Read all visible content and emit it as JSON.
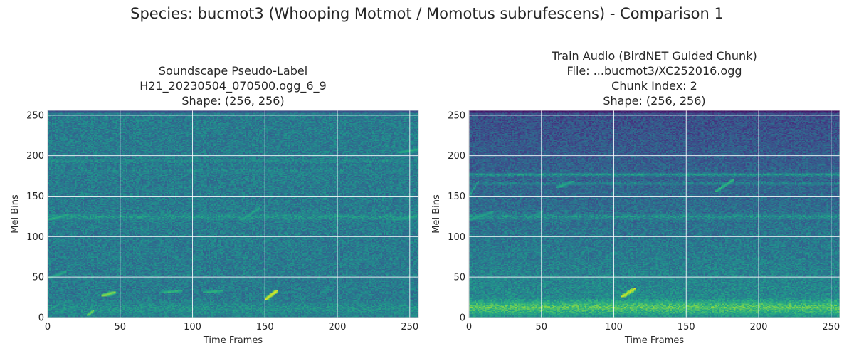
{
  "figure": {
    "title": "Species: bucmot3 (Whooping Motmot / Momotus subrufescens) - Comparison 1"
  },
  "chart_data": [
    {
      "type": "heatmap",
      "title_lines": [
        "Soundscape Pseudo-Label",
        "H21_20230504_070500.ogg_6_9",
        "Shape: (256, 256)"
      ],
      "xlabel": "Time Frames",
      "ylabel": "Mel Bins",
      "xlim": [
        0,
        256
      ],
      "ylim": [
        0,
        256
      ],
      "xticks": [
        0,
        50,
        100,
        150,
        200,
        250
      ],
      "yticks": [
        0,
        50,
        100,
        150,
        200,
        250
      ],
      "grid": true,
      "colormap": "viridis",
      "shape": [
        256,
        256
      ],
      "baseline_level": 0.42,
      "bands": [
        {
          "y": 249,
          "width": 2,
          "level": 0.38
        },
        {
          "y": 193,
          "width": 3,
          "level": 0.48
        },
        {
          "y": 180,
          "width": 3,
          "level": 0.46
        },
        {
          "y": 124,
          "width": 5,
          "level": 0.52
        },
        {
          "y": 10,
          "width": 12,
          "level": 0.5
        }
      ],
      "top_rows_level": 0.25,
      "calls": [
        {
          "x0": 37,
          "x1": 46,
          "y0": 26,
          "y1": 31,
          "level": 0.85
        },
        {
          "x0": 150,
          "x1": 158,
          "y0": 22,
          "y1": 33,
          "level": 0.98
        },
        {
          "x0": 27,
          "x1": 31,
          "y0": 2,
          "y1": 8,
          "level": 0.8
        },
        {
          "x0": 79,
          "x1": 92,
          "y0": 30,
          "y1": 33,
          "level": 0.68
        },
        {
          "x0": 107,
          "x1": 120,
          "y0": 30,
          "y1": 33,
          "level": 0.66
        },
        {
          "x0": 133,
          "x1": 146,
          "y0": 120,
          "y1": 135,
          "level": 0.62
        },
        {
          "x0": 0,
          "x1": 14,
          "y0": 120,
          "y1": 127,
          "level": 0.64
        },
        {
          "x0": 238,
          "x1": 254,
          "y0": 120,
          "y1": 124,
          "level": 0.6
        },
        {
          "x0": 242,
          "x1": 256,
          "y0": 203,
          "y1": 208,
          "level": 0.64
        },
        {
          "x0": 0,
          "x1": 12,
          "y0": 48,
          "y1": 56,
          "level": 0.62
        }
      ]
    },
    {
      "type": "heatmap",
      "title_lines": [
        "Train Audio (BirdNET Guided Chunk)",
        "File: ...bucmot3/XC252016.ogg",
        "Chunk Index: 2",
        "Shape: (256, 256)"
      ],
      "xlabel": "Time Frames",
      "ylabel": "Mel Bins",
      "xlim": [
        0,
        256
      ],
      "ylim": [
        0,
        256
      ],
      "xticks": [
        0,
        50,
        100,
        150,
        200,
        250
      ],
      "yticks": [
        0,
        50,
        100,
        150,
        200,
        250
      ],
      "grid": true,
      "colormap": "viridis",
      "shape": [
        256,
        256
      ],
      "baseline_level": 0.38,
      "gradient": {
        "top_level": 0.24,
        "bottom_level": 0.5
      },
      "bands": [
        {
          "y": 176,
          "width": 3,
          "level": 0.52
        },
        {
          "y": 165,
          "width": 3,
          "level": 0.46
        },
        {
          "y": 124,
          "width": 5,
          "level": 0.5
        },
        {
          "y": 12,
          "width": 12,
          "level": 0.74
        }
      ],
      "top_rows_level": 0.08,
      "calls": [
        {
          "x0": 105,
          "x1": 114,
          "y0": 25,
          "y1": 35,
          "level": 0.95
        },
        {
          "x0": 170,
          "x1": 182,
          "y0": 155,
          "y1": 170,
          "level": 0.68
        },
        {
          "x0": 60,
          "x1": 72,
          "y0": 160,
          "y1": 168,
          "level": 0.62
        },
        {
          "x0": 0,
          "x1": 6,
          "y0": 150,
          "y1": 168,
          "level": 0.6
        },
        {
          "x0": 0,
          "x1": 16,
          "y0": 120,
          "y1": 130,
          "level": 0.6
        },
        {
          "x0": 40,
          "x1": 50,
          "y0": 122,
          "y1": 130,
          "level": 0.56
        }
      ]
    }
  ]
}
